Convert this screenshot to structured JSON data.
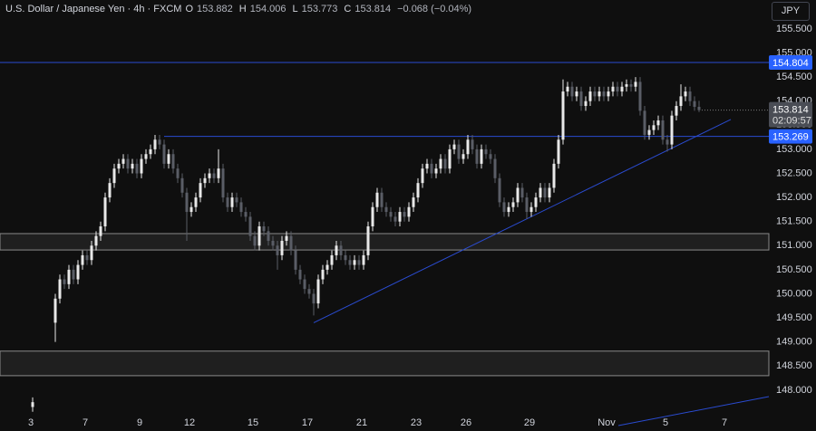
{
  "chart_data": {
    "type": "candlestick",
    "symbol": "U.S. Dollar / Japanese Yen · 4h · FXCM",
    "ohlc_letters": [
      "O",
      "H",
      "L",
      "C"
    ],
    "change": "−0.068 (−0.04%)",
    "currency": "JPY",
    "countdown": "02:09:57",
    "categories": [
      "3",
      null,
      null,
      null,
      null,
      null,
      null,
      null,
      null,
      null,
      null,
      null,
      "7",
      null,
      null,
      null,
      null,
      null,
      null,
      null,
      null,
      null,
      null,
      null,
      "9",
      null,
      null,
      null,
      null,
      null,
      null,
      null,
      null,
      null,
      null,
      "12",
      null,
      null,
      null,
      null,
      null,
      null,
      null,
      null,
      null,
      null,
      null,
      null,
      null,
      "15",
      null,
      null,
      null,
      null,
      null,
      null,
      null,
      null,
      null,
      null,
      null,
      "17",
      null,
      null,
      null,
      null,
      null,
      null,
      null,
      null,
      null,
      null,
      null,
      "21",
      null,
      null,
      null,
      null,
      null,
      null,
      null,
      null,
      null,
      null,
      null,
      "23",
      null,
      null,
      null,
      null,
      null,
      null,
      null,
      null,
      null,
      null,
      "26",
      null,
      null,
      null,
      null,
      null,
      null,
      null,
      null,
      null,
      null,
      null,
      null,
      null,
      "29",
      null,
      null,
      null,
      null,
      null,
      null,
      null,
      null,
      null,
      null,
      null,
      null,
      null,
      null,
      null,
      null,
      "Nov",
      null,
      null,
      null,
      null,
      null,
      null,
      null,
      null,
      null,
      null,
      null,
      null,
      "5",
      null,
      null,
      null,
      null,
      null,
      null,
      null,
      null,
      null,
      null,
      null,
      null,
      "7"
    ],
    "open": [
      147.65,
      null,
      null,
      null,
      null,
      149.4,
      149.9,
      150.3,
      150.2,
      150.5,
      150.3,
      150.6,
      150.8,
      150.7,
      151.0,
      151.2,
      151.4,
      152.0,
      152.3,
      152.6,
      152.7,
      152.8,
      152.6,
      152.7,
      152.5,
      152.8,
      152.9,
      153.0,
      153.2,
      153.1,
      152.7,
      152.9,
      152.6,
      152.4,
      152.1,
      151.7,
      151.8,
      152.0,
      152.3,
      152.4,
      152.5,
      152.4,
      152.6,
      152.0,
      151.8,
      152.0,
      151.9,
      151.7,
      151.6,
      151.2,
      151.0,
      151.4,
      151.3,
      151.1,
      151.0,
      150.8,
      151.1,
      151.2,
      150.9,
      150.5,
      150.3,
      150.1,
      150.0,
      149.8,
      150.3,
      150.5,
      150.6,
      150.8,
      151.0,
      150.8,
      150.7,
      150.6,
      150.7,
      150.6,
      150.8,
      151.4,
      151.8,
      152.1,
      151.8,
      151.7,
      151.6,
      151.5,
      151.7,
      151.6,
      151.8,
      152.0,
      152.3,
      152.6,
      152.7,
      152.5,
      152.6,
      152.8,
      152.6,
      153.0,
      153.1,
      152.8,
      152.9,
      153.2,
      153.0,
      152.7,
      153.0,
      152.9,
      152.8,
      152.4,
      151.9,
      151.7,
      151.8,
      151.9,
      152.2,
      152.0,
      151.7,
      151.8,
      152.0,
      152.2,
      152.0,
      152.2,
      152.7,
      153.2,
      154.2,
      154.3,
      154.1,
      154.2,
      153.9,
      154.0,
      154.2,
      154.1,
      154.2,
      154.1,
      154.2,
      154.3,
      154.2,
      154.3,
      154.35,
      154.3,
      154.4,
      153.8,
      153.3,
      153.4,
      153.5,
      153.6,
      153.2,
      153.1,
      153.7,
      153.9,
      154.1,
      154.2,
      154.0,
      153.882,
      null,
      null,
      null,
      null,
      null,
      null
    ],
    "high": [
      147.85,
      null,
      null,
      null,
      null,
      150.0,
      150.4,
      150.4,
      150.6,
      150.6,
      150.7,
      150.9,
      150.9,
      151.1,
      151.3,
      151.5,
      152.1,
      152.4,
      152.7,
      152.8,
      152.9,
      152.9,
      152.8,
      152.8,
      152.9,
      153.0,
      153.1,
      153.3,
      153.3,
      153.2,
      153.0,
      153.0,
      152.7,
      152.5,
      152.2,
      151.9,
      152.1,
      152.4,
      152.5,
      152.6,
      152.6,
      153.0,
      152.7,
      152.1,
      152.1,
      152.1,
      152.0,
      151.8,
      151.7,
      151.3,
      151.5,
      151.5,
      151.4,
      151.2,
      151.1,
      151.2,
      151.3,
      151.3,
      151.0,
      150.6,
      150.4,
      150.2,
      150.1,
      150.4,
      150.6,
      150.7,
      150.9,
      151.1,
      151.1,
      150.9,
      150.8,
      150.8,
      150.8,
      150.9,
      151.5,
      151.9,
      152.2,
      152.2,
      151.9,
      151.8,
      151.7,
      151.8,
      151.8,
      151.9,
      152.1,
      152.4,
      152.7,
      152.8,
      152.8,
      152.7,
      152.9,
      152.9,
      153.1,
      153.2,
      153.2,
      153.0,
      153.3,
      153.3,
      153.1,
      153.1,
      153.1,
      153.0,
      152.9,
      152.5,
      152.0,
      151.9,
      152.0,
      152.3,
      152.3,
      152.1,
      151.9,
      152.1,
      152.3,
      152.3,
      152.3,
      152.8,
      153.3,
      154.45,
      154.4,
      154.4,
      154.3,
      154.3,
      154.1,
      154.3,
      154.3,
      154.3,
      154.3,
      154.3,
      154.4,
      154.4,
      154.4,
      154.45,
      154.45,
      154.5,
      154.5,
      153.9,
      153.5,
      153.6,
      153.7,
      153.7,
      153.3,
      153.8,
      154.0,
      154.35,
      154.3,
      154.3,
      154.1,
      154.006,
      null,
      null,
      null,
      null,
      null,
      null
    ],
    "low": [
      147.55,
      null,
      null,
      null,
      null,
      149.0,
      149.8,
      150.1,
      150.1,
      150.2,
      150.2,
      150.5,
      150.6,
      150.6,
      150.9,
      151.1,
      151.3,
      151.9,
      152.2,
      152.5,
      152.6,
      152.5,
      152.5,
      152.4,
      152.4,
      152.7,
      152.8,
      152.9,
      153.0,
      152.6,
      152.6,
      152.5,
      152.3,
      152.0,
      151.1,
      151.6,
      151.7,
      151.9,
      152.2,
      152.3,
      152.3,
      152.3,
      151.9,
      151.7,
      151.7,
      151.8,
      151.6,
      151.5,
      151.1,
      150.9,
      150.9,
      151.2,
      151.0,
      150.9,
      150.5,
      150.7,
      151.0,
      150.8,
      150.4,
      150.2,
      150.0,
      149.9,
      149.55,
      149.7,
      150.2,
      150.4,
      150.5,
      150.7,
      150.7,
      150.6,
      150.5,
      150.5,
      150.5,
      150.5,
      150.7,
      151.3,
      151.7,
      151.7,
      151.6,
      151.5,
      151.4,
      151.4,
      151.5,
      151.5,
      151.7,
      151.9,
      152.2,
      152.5,
      152.4,
      152.4,
      152.5,
      152.5,
      152.5,
      152.9,
      152.7,
      152.7,
      152.8,
      152.9,
      152.6,
      152.6,
      152.8,
      152.7,
      152.3,
      151.8,
      151.6,
      151.6,
      151.7,
      151.8,
      151.9,
      151.55,
      151.6,
      151.7,
      151.9,
      151.9,
      151.9,
      152.1,
      152.6,
      153.1,
      154.1,
      154.0,
      154.0,
      153.8,
      153.8,
      153.9,
      154.0,
      154.0,
      154.0,
      154.0,
      154.1,
      154.1,
      154.1,
      154.2,
      154.2,
      154.2,
      153.7,
      153.2,
      153.2,
      153.3,
      153.4,
      153.1,
      152.95,
      153.0,
      153.6,
      153.8,
      154.0,
      153.9,
      153.8,
      153.773,
      null,
      null,
      null,
      null,
      null,
      null
    ],
    "close": [
      147.75,
      null,
      null,
      null,
      null,
      149.9,
      150.3,
      150.2,
      150.5,
      150.3,
      150.6,
      150.8,
      150.7,
      151.0,
      151.2,
      151.4,
      152.0,
      152.3,
      152.6,
      152.7,
      152.8,
      152.6,
      152.7,
      152.5,
      152.8,
      152.9,
      153.0,
      153.2,
      153.1,
      152.7,
      152.9,
      152.6,
      152.4,
      152.1,
      151.7,
      151.8,
      152.0,
      152.3,
      152.4,
      152.5,
      152.4,
      152.6,
      152.0,
      151.8,
      152.0,
      151.9,
      151.7,
      151.6,
      151.2,
      151.0,
      151.4,
      151.3,
      151.1,
      151.0,
      150.8,
      151.1,
      151.2,
      150.9,
      150.5,
      150.3,
      150.1,
      150.0,
      149.8,
      150.3,
      150.5,
      150.6,
      150.8,
      151.0,
      150.8,
      150.7,
      150.6,
      150.7,
      150.6,
      150.8,
      151.4,
      151.8,
      152.1,
      151.8,
      151.7,
      151.6,
      151.5,
      151.7,
      151.6,
      151.8,
      152.0,
      152.3,
      152.6,
      152.7,
      152.5,
      152.6,
      152.8,
      152.6,
      153.0,
      153.1,
      152.8,
      152.9,
      153.2,
      153.0,
      152.7,
      153.0,
      152.9,
      152.8,
      152.4,
      151.9,
      151.7,
      151.8,
      151.9,
      152.2,
      152.0,
      151.7,
      151.8,
      152.0,
      152.2,
      152.0,
      152.2,
      152.7,
      153.2,
      154.2,
      154.3,
      154.1,
      154.2,
      153.9,
      154.0,
      154.2,
      154.1,
      154.2,
      154.1,
      154.2,
      154.3,
      154.2,
      154.3,
      154.35,
      154.3,
      154.4,
      153.8,
      153.3,
      153.4,
      153.5,
      153.6,
      153.2,
      153.1,
      153.7,
      153.9,
      154.1,
      154.2,
      154.0,
      153.882,
      153.814,
      null,
      null,
      null,
      null,
      null,
      null
    ],
    "up_color": "#e8e8e8",
    "down_color": "#5a5d66",
    "line_color": "#2a4bd0",
    "levels": [
      154.804,
      153.269
    ],
    "zones": [
      [
        151.25,
        150.91
      ],
      [
        148.81,
        148.3
      ]
    ],
    "trendline": [
      149.4,
      153.62
    ],
    "ylim": [
      147.49,
      156.1
    ],
    "yticks": [
      {
        "value": 148,
        "label": "148.000"
      },
      {
        "value": 148.5,
        "label": "148.500"
      },
      {
        "value": 149,
        "label": "149.000"
      },
      {
        "value": 149.5,
        "label": "149.500"
      },
      {
        "value": 150,
        "label": "150.000"
      },
      {
        "value": 150.5,
        "label": "150.500"
      },
      {
        "value": 151,
        "label": "151.000"
      },
      {
        "value": 151.5,
        "label": "151.500"
      },
      {
        "value": 152,
        "label": "152.000"
      },
      {
        "value": 152.5,
        "label": "152.500"
      },
      {
        "value": 153,
        "label": "153.000"
      },
      {
        "value": 153.5,
        "label": "153.500"
      },
      {
        "value": 154,
        "label": "154.000"
      },
      {
        "value": 154.5,
        "label": "154.500"
      },
      {
        "value": 155,
        "label": "155.000"
      },
      {
        "value": 155.5,
        "label": "155.500"
      }
    ],
    "grid": false
  }
}
